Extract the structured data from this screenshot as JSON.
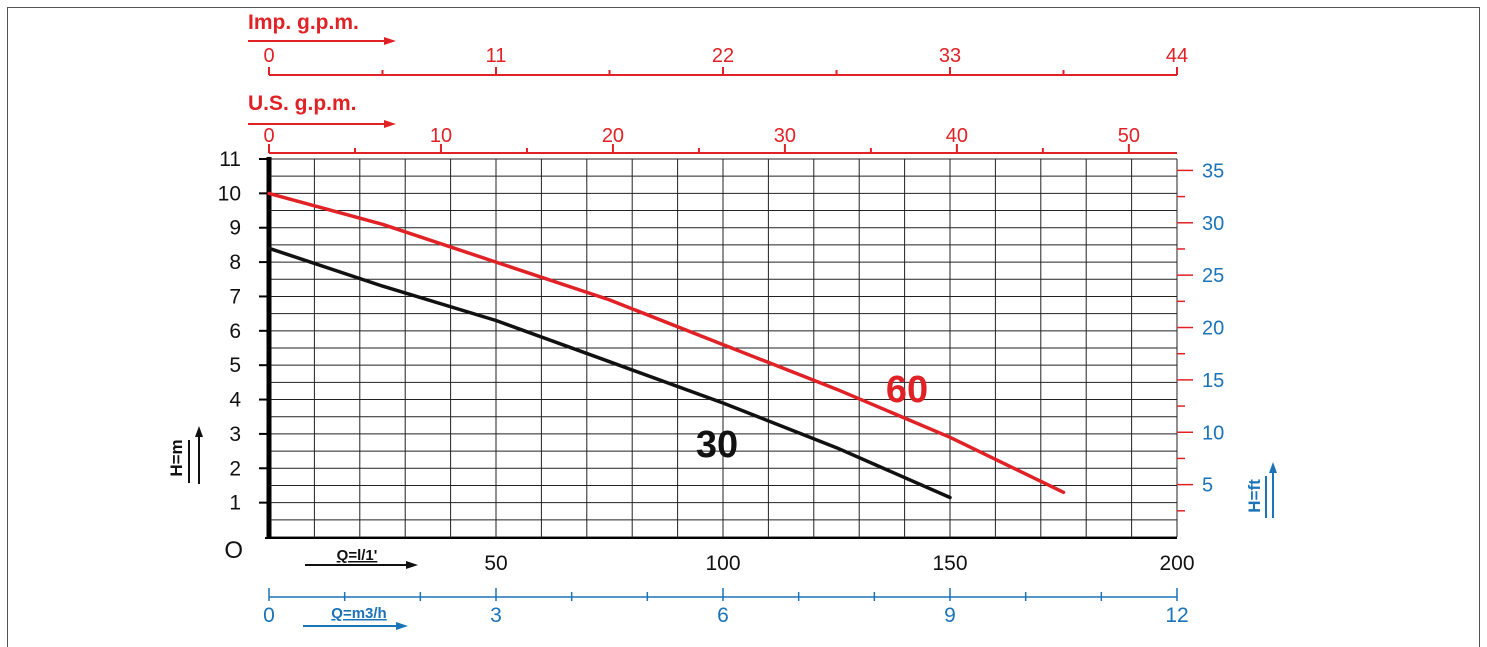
{
  "colors": {
    "red": "#e02226",
    "blue": "#1b73b8",
    "black": "#111111",
    "grid": "#222222"
  },
  "labels": {
    "imp_gpm": "Imp. g.p.m.",
    "us_gpm": "U.S. g.p.m.",
    "h_m": "H=m",
    "h_ft": "H=ft",
    "q_lmin": "Q=l/1'",
    "q_m3h": "Q=m3/h"
  },
  "chart_data": {
    "type": "line",
    "title": "",
    "x_axis": {
      "label": "Q=l/1'",
      "range": [
        0,
        200
      ],
      "ticks": [
        50,
        100,
        150,
        200
      ]
    },
    "y_axis": {
      "label": "H=m",
      "range": [
        0,
        11
      ],
      "ticks": [
        "1",
        "2",
        "3",
        "4",
        "5",
        "6",
        "7",
        "8",
        "9",
        "10",
        "11"
      ],
      "zero_label": "O"
    },
    "secondary_axes": {
      "imp_gpm": {
        "label": "Imp. g.p.m.",
        "range": [
          0,
          44
        ],
        "ticks": [
          0,
          11,
          22,
          33,
          44
        ],
        "minor_step": 5.5,
        "color": "#e02226"
      },
      "us_gpm": {
        "label": "U.S. g.p.m.",
        "range": [
          0,
          52.8
        ],
        "ticks": [
          0,
          10,
          20,
          30,
          40,
          50
        ],
        "color": "#e02226"
      },
      "h_ft": {
        "label": "H=ft",
        "ticks": [
          5,
          10,
          15,
          20,
          25,
          30,
          35
        ],
        "color": "#1b73b8"
      },
      "m3h": {
        "label": "Q=m3/h",
        "range": [
          0,
          12
        ],
        "ticks": [
          0,
          3,
          6,
          9,
          12
        ],
        "minor_step": 1,
        "color": "#1b73b8"
      }
    },
    "grid": true,
    "series": [
      {
        "name": "60",
        "color": "#e02226",
        "x": [
          0,
          25,
          50,
          75,
          100,
          125,
          150,
          175
        ],
        "y": [
          10.0,
          9.1,
          8.0,
          6.9,
          5.6,
          4.3,
          2.9,
          1.3
        ]
      },
      {
        "name": "30",
        "color": "#111111",
        "x": [
          0,
          25,
          50,
          75,
          100,
          125,
          150
        ],
        "y": [
          8.4,
          7.3,
          6.3,
          5.1,
          3.9,
          2.6,
          1.15
        ]
      }
    ],
    "series_labels": [
      "60",
      "30"
    ]
  }
}
